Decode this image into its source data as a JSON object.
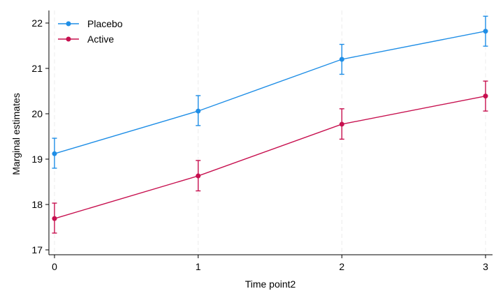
{
  "chart_data": {
    "type": "line",
    "title": "",
    "xlabel": "Time point2",
    "ylabel": "Marginal estimates",
    "x": [
      0,
      1,
      2,
      3
    ],
    "x_ticks": [
      "0",
      "1",
      "2",
      "3"
    ],
    "y_ticks": [
      "17",
      "18",
      "19",
      "20",
      "21",
      "22"
    ],
    "xlim": [
      0,
      3
    ],
    "ylim": [
      17,
      22
    ],
    "grid": "vertical dashed at x ticks",
    "legend": "top-left",
    "series": [
      {
        "name": "Placebo",
        "color": "#1f8ee6",
        "values": [
          19.12,
          20.06,
          21.2,
          21.82
        ],
        "ci_low": [
          18.8,
          19.74,
          20.87,
          21.49
        ],
        "ci_high": [
          19.46,
          20.4,
          21.53,
          22.15
        ]
      },
      {
        "name": "Active",
        "color": "#c7104f",
        "values": [
          17.69,
          18.63,
          19.77,
          20.39
        ],
        "ci_low": [
          17.37,
          18.3,
          19.44,
          20.06
        ],
        "ci_high": [
          18.03,
          18.97,
          20.11,
          20.72
        ]
      }
    ]
  }
}
